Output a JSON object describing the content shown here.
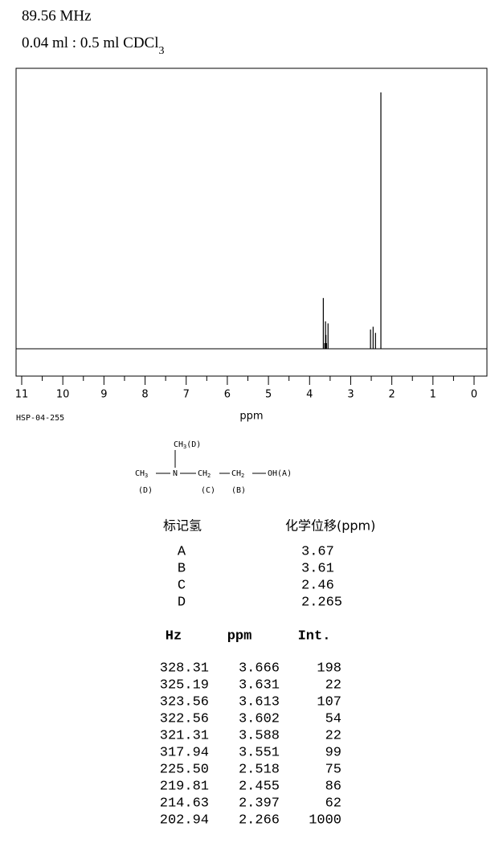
{
  "header": {
    "frequency": "89.56 MHz",
    "solvent": {
      "text": "0.04 ml : 0.5 ml CDCl",
      "sub": "3"
    }
  },
  "spectrum": {
    "xlim": [
      11,
      0
    ],
    "xticks": [
      11,
      10,
      9,
      8,
      7,
      6,
      5,
      4,
      3,
      2,
      1,
      0
    ],
    "xlabel": "ppm",
    "code": "HSP-04-255"
  },
  "structure": {
    "top": {
      "text": "CH",
      "sub": "3",
      "label": "(D)"
    },
    "left": {
      "text": "CH",
      "sub": "3"
    },
    "n": "N",
    "c": {
      "text": "CH",
      "sub": "2"
    },
    "b": {
      "text": "CH",
      "sub": "2"
    },
    "oh": "OH(A)",
    "labels": [
      "(D)",
      "(C)",
      "(B)"
    ]
  },
  "assignments": {
    "header": [
      "标记氢",
      "化学位移(ppm)"
    ],
    "rows": [
      [
        "A",
        "3.67"
      ],
      [
        "B",
        "3.61"
      ],
      [
        "C",
        "2.46"
      ],
      [
        "D",
        "2.265"
      ]
    ]
  },
  "peaks": {
    "header": [
      "Hz",
      "ppm",
      "Int."
    ],
    "rows": [
      [
        "328.31",
        "3.666",
        "198"
      ],
      [
        "325.19",
        "3.631",
        "22"
      ],
      [
        "323.56",
        "3.613",
        "107"
      ],
      [
        "322.56",
        "3.602",
        "54"
      ],
      [
        "321.31",
        "3.588",
        "22"
      ],
      [
        "317.94",
        "3.551",
        "99"
      ],
      [
        "225.50",
        "2.518",
        "75"
      ],
      [
        "219.81",
        "2.455",
        "86"
      ],
      [
        "214.63",
        "2.397",
        "62"
      ],
      [
        "202.94",
        "2.266",
        "1000"
      ]
    ]
  }
}
